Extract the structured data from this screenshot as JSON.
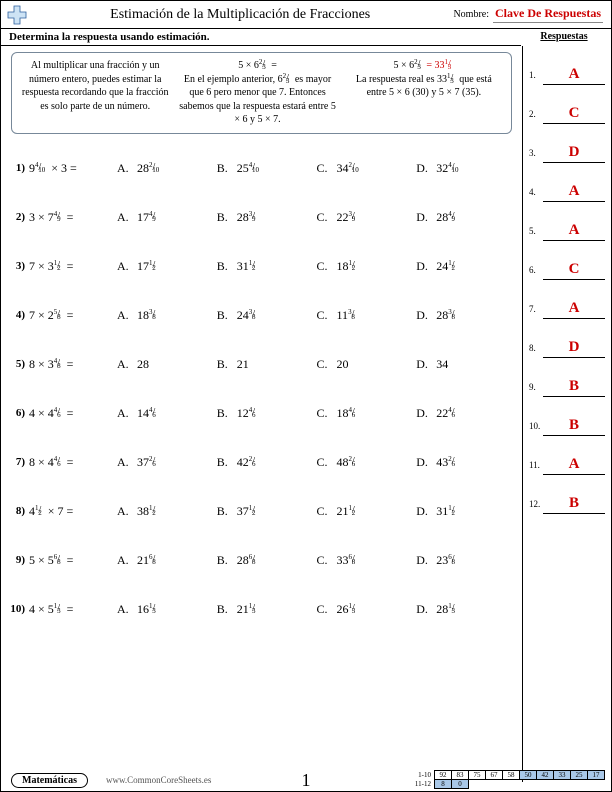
{
  "header": {
    "title": "Estimación de la Multiplicación de Fracciones",
    "name_label": "Nombre:",
    "answer_key": "Clave De Respuestas"
  },
  "subheader": "Determina la respuesta usando estimación.",
  "answers_label": "Respuestas",
  "explain": {
    "left": "Al multiplicar una fracción y un número entero, puedes estimar la respuesta recordando que la fracción es solo parte de un número.",
    "mid_eq": "5 × 6",
    "mid_eq_suffix": " =",
    "mid_frac_n": "2",
    "mid_frac_d": "3",
    "mid_text1a": "En el ejemplo anterior, 6",
    "mid_text1b": "es mayor que 6 pero menor que 7. Entonces sabemos que la respuesta estará entre 5 × 6 y 5 × 7.",
    "right_eq_a": "5 × 6",
    "right_eq_b": " = 33",
    "right_frac_n": "1",
    "right_frac_d": "3",
    "right_text_a": "La respuesta real es 33",
    "right_text_b": "que está entre 5 × 6 (30) y 5 × 7 (35)."
  },
  "problems": [
    {
      "n": "1)",
      "lw": "9",
      "ln": "4",
      "ld": "10",
      "op": " × 3 =",
      "opts": [
        {
          "L": "A.",
          "w": "28",
          "n": "2",
          "d": "10"
        },
        {
          "L": "B.",
          "w": "25",
          "n": "4",
          "d": "10"
        },
        {
          "L": "C.",
          "w": "34",
          "n": "2",
          "d": "10"
        },
        {
          "L": "D.",
          "w": "32",
          "n": "4",
          "d": "10"
        }
      ]
    },
    {
      "n": "2)",
      "lw": "3 × 7",
      "ln": "4",
      "ld": "9",
      "op": " =",
      "opts": [
        {
          "L": "A.",
          "w": "17",
          "n": "4",
          "d": "9"
        },
        {
          "L": "B.",
          "w": "28",
          "n": "3",
          "d": "9"
        },
        {
          "L": "C.",
          "w": "22",
          "n": "3",
          "d": "9"
        },
        {
          "L": "D.",
          "w": "28",
          "n": "4",
          "d": "9"
        }
      ]
    },
    {
      "n": "3)",
      "lw": "7 × 3",
      "ln": "1",
      "ld": "2",
      "op": " =",
      "opts": [
        {
          "L": "A.",
          "w": "17",
          "n": "1",
          "d": "2"
        },
        {
          "L": "B.",
          "w": "31",
          "n": "1",
          "d": "2"
        },
        {
          "L": "C.",
          "w": "18",
          "n": "1",
          "d": "2"
        },
        {
          "L": "D.",
          "w": "24",
          "n": "1",
          "d": "2"
        }
      ]
    },
    {
      "n": "4)",
      "lw": "7 × 2",
      "ln": "5",
      "ld": "8",
      "op": " =",
      "opts": [
        {
          "L": "A.",
          "w": "18",
          "n": "3",
          "d": "8"
        },
        {
          "L": "B.",
          "w": "24",
          "n": "3",
          "d": "8"
        },
        {
          "L": "C.",
          "w": "11",
          "n": "3",
          "d": "8"
        },
        {
          "L": "D.",
          "w": "28",
          "n": "3",
          "d": "8"
        }
      ]
    },
    {
      "n": "5)",
      "lw": "8 × 3",
      "ln": "4",
      "ld": "8",
      "op": " =",
      "opts": [
        {
          "L": "A.",
          "w": "28",
          "n": "",
          "d": ""
        },
        {
          "L": "B.",
          "w": "21",
          "n": "",
          "d": ""
        },
        {
          "L": "C.",
          "w": "20",
          "n": "",
          "d": ""
        },
        {
          "L": "D.",
          "w": "34",
          "n": "",
          "d": ""
        }
      ]
    },
    {
      "n": "6)",
      "lw": "4 × 4",
      "ln": "4",
      "ld": "6",
      "op": " =",
      "opts": [
        {
          "L": "A.",
          "w": "14",
          "n": "4",
          "d": "6"
        },
        {
          "L": "B.",
          "w": "12",
          "n": "4",
          "d": "6"
        },
        {
          "L": "C.",
          "w": "18",
          "n": "4",
          "d": "6"
        },
        {
          "L": "D.",
          "w": "22",
          "n": "4",
          "d": "6"
        }
      ]
    },
    {
      "n": "7)",
      "lw": "8 × 4",
      "ln": "4",
      "ld": "6",
      "op": " =",
      "opts": [
        {
          "L": "A.",
          "w": "37",
          "n": "2",
          "d": "6"
        },
        {
          "L": "B.",
          "w": "42",
          "n": "2",
          "d": "6"
        },
        {
          "L": "C.",
          "w": "48",
          "n": "2",
          "d": "6"
        },
        {
          "L": "D.",
          "w": "43",
          "n": "2",
          "d": "6"
        }
      ]
    },
    {
      "n": "8)",
      "lw": "4",
      "ln": "1",
      "ld": "2",
      "op": " × 7 =",
      "opts": [
        {
          "L": "A.",
          "w": "38",
          "n": "1",
          "d": "2"
        },
        {
          "L": "B.",
          "w": "37",
          "n": "1",
          "d": "2"
        },
        {
          "L": "C.",
          "w": "21",
          "n": "1",
          "d": "2"
        },
        {
          "L": "D.",
          "w": "31",
          "n": "1",
          "d": "2"
        }
      ]
    },
    {
      "n": "9)",
      "lw": "5 × 5",
      "ln": "6",
      "ld": "8",
      "op": " =",
      "opts": [
        {
          "L": "A.",
          "w": "21",
          "n": "6",
          "d": "8"
        },
        {
          "L": "B.",
          "w": "28",
          "n": "6",
          "d": "8"
        },
        {
          "L": "C.",
          "w": "33",
          "n": "6",
          "d": "8"
        },
        {
          "L": "D.",
          "w": "23",
          "n": "6",
          "d": "8"
        }
      ]
    },
    {
      "n": "10)",
      "lw": "4 × 5",
      "ln": "1",
      "ld": "3",
      "op": " =",
      "opts": [
        {
          "L": "A.",
          "w": "16",
          "n": "1",
          "d": "3"
        },
        {
          "L": "B.",
          "w": "21",
          "n": "1",
          "d": "3"
        },
        {
          "L": "C.",
          "w": "26",
          "n": "1",
          "d": "3"
        },
        {
          "L": "D.",
          "w": "28",
          "n": "1",
          "d": "3"
        }
      ]
    }
  ],
  "answers": [
    {
      "n": "1.",
      "v": "A"
    },
    {
      "n": "2.",
      "v": "C"
    },
    {
      "n": "3.",
      "v": "D"
    },
    {
      "n": "4.",
      "v": "A"
    },
    {
      "n": "5.",
      "v": "A"
    },
    {
      "n": "6.",
      "v": "C"
    },
    {
      "n": "7.",
      "v": "A"
    },
    {
      "n": "8.",
      "v": "D"
    },
    {
      "n": "9.",
      "v": "B"
    },
    {
      "n": "10.",
      "v": "B"
    },
    {
      "n": "11.",
      "v": "A"
    },
    {
      "n": "12.",
      "v": "B"
    }
  ],
  "footer": {
    "subject": "Matemáticas",
    "site": "www.CommonCoreSheets.es",
    "page": "1",
    "score_labels": [
      "1-10",
      "11-12"
    ],
    "score_row1": [
      "92",
      "83",
      "75",
      "67",
      "58",
      "50",
      "42",
      "33",
      "25",
      "17"
    ],
    "score_row2": [
      "8",
      "0",
      "",
      "",
      "",
      "",
      "",
      "",
      "",
      ""
    ]
  },
  "style": {
    "accent": "#c00",
    "box_border": "#789",
    "hl": "#a9c8e8"
  }
}
